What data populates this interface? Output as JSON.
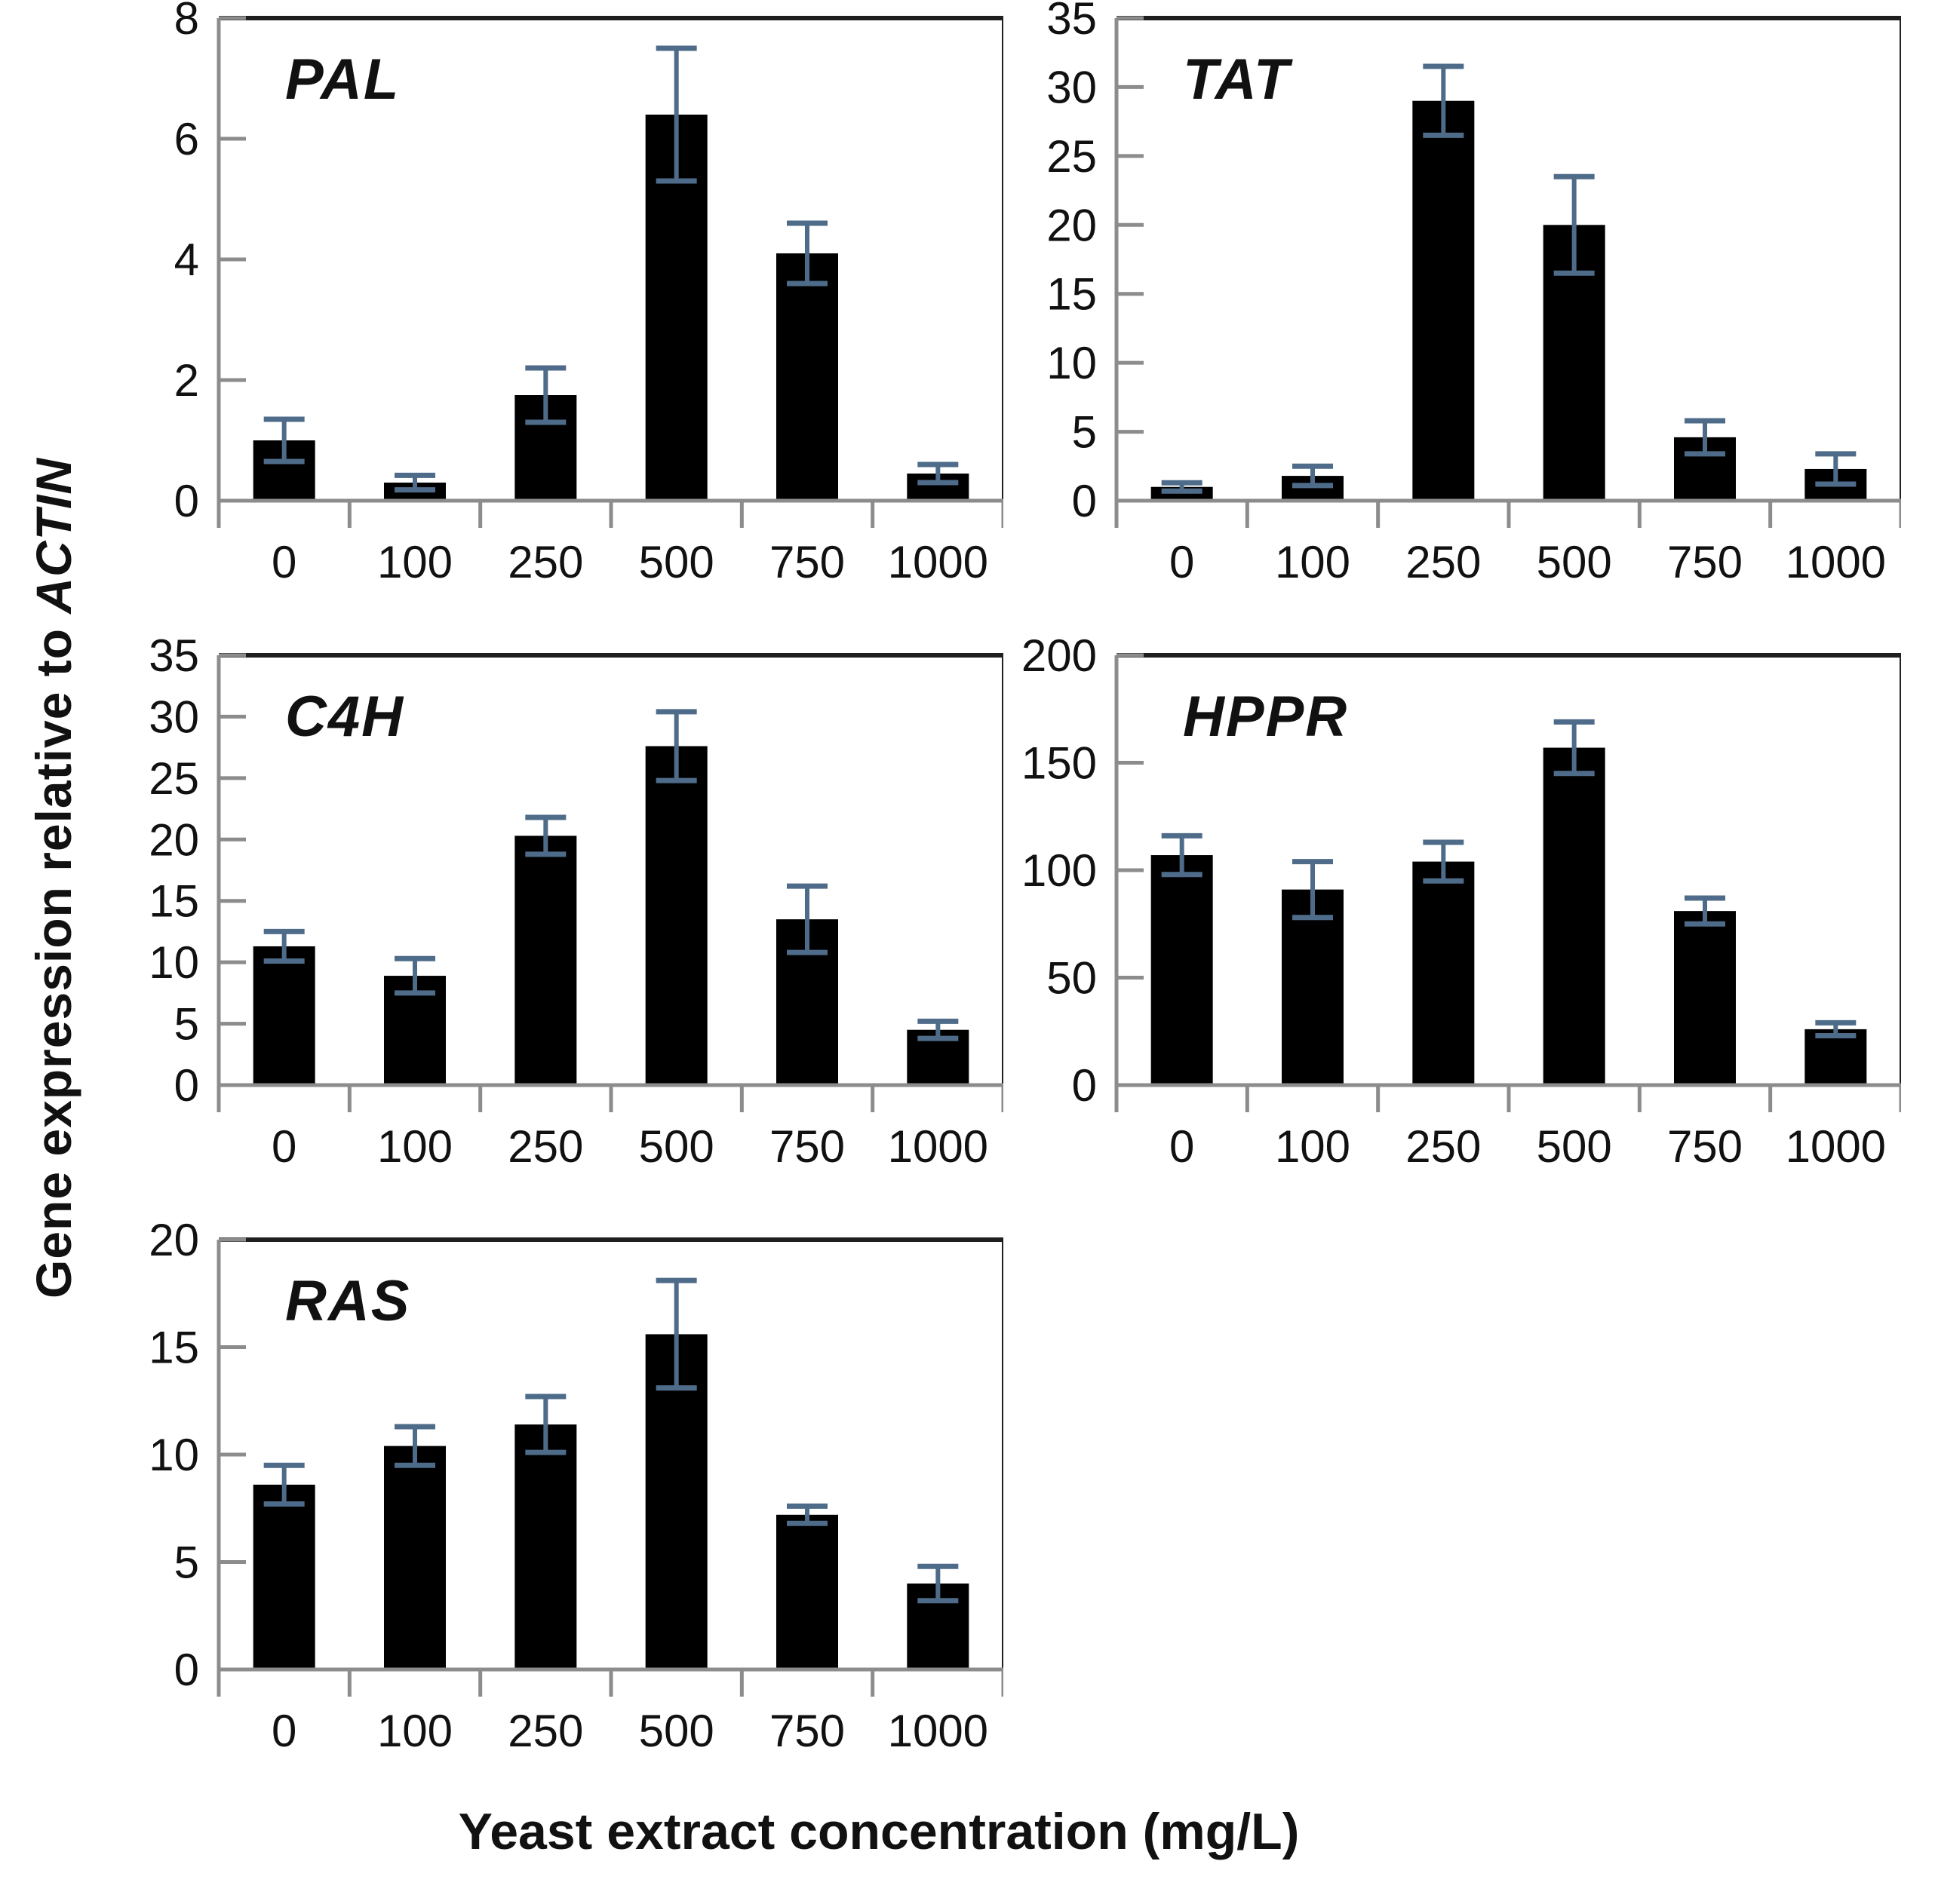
{
  "figure": {
    "ylabel_prefix": "Gene expression relative to ",
    "ylabel_gene": "ACTIN",
    "xlabel": "Yeast extract concentration (mg/L)",
    "colors": {
      "bar": "#000000",
      "error_bar": "#4e6c89",
      "axis": "#8c8c8c",
      "border": "#1f1f1f",
      "text": "#111111"
    }
  },
  "chart_data": [
    {
      "gene": "PAL",
      "type": "bar",
      "categories": [
        "0",
        "100",
        "250",
        "500",
        "750",
        "1000"
      ],
      "values": [
        1.0,
        0.3,
        1.75,
        6.4,
        4.1,
        0.45
      ],
      "errors": [
        0.35,
        0.12,
        0.45,
        1.1,
        0.5,
        0.15
      ],
      "ylim": [
        0,
        8
      ],
      "ytick_step": 2,
      "yticks": [
        0,
        2,
        4,
        6,
        8
      ]
    },
    {
      "gene": "TAT",
      "type": "bar",
      "categories": [
        "0",
        "100",
        "250",
        "500",
        "750",
        "1000"
      ],
      "values": [
        1.0,
        1.8,
        29.0,
        20.0,
        4.6,
        2.3
      ],
      "errors": [
        0.3,
        0.7,
        2.5,
        3.5,
        1.2,
        1.1
      ],
      "ylim": [
        0,
        35
      ],
      "ytick_step": 5,
      "yticks": [
        0,
        5,
        10,
        15,
        20,
        25,
        30,
        35
      ]
    },
    {
      "gene": "C4H",
      "type": "bar",
      "categories": [
        "0",
        "100",
        "250",
        "500",
        "750",
        "1000"
      ],
      "values": [
        11.3,
        8.9,
        20.3,
        27.6,
        13.5,
        4.5
      ],
      "errors": [
        1.2,
        1.4,
        1.5,
        2.8,
        2.7,
        0.7
      ],
      "ylim": [
        0,
        35
      ],
      "ytick_step": 5,
      "yticks": [
        0,
        5,
        10,
        15,
        20,
        25,
        30,
        35
      ]
    },
    {
      "gene": "HPPR",
      "type": "bar",
      "categories": [
        "0",
        "100",
        "250",
        "500",
        "750",
        "1000"
      ],
      "values": [
        107,
        91,
        104,
        157,
        81,
        26
      ],
      "errors": [
        9,
        13,
        9,
        12,
        6,
        3
      ],
      "ylim": [
        0,
        200
      ],
      "ytick_step": 50,
      "yticks": [
        0,
        50,
        100,
        150,
        200
      ]
    },
    {
      "gene": "RAS",
      "type": "bar",
      "categories": [
        "0",
        "100",
        "250",
        "500",
        "750",
        "1000"
      ],
      "values": [
        8.6,
        10.4,
        11.4,
        15.6,
        7.2,
        4.0
      ],
      "errors": [
        0.9,
        0.9,
        1.3,
        2.5,
        0.4,
        0.8
      ],
      "ylim": [
        0,
        20
      ],
      "ytick_step": 5,
      "yticks": [
        0,
        5,
        10,
        15,
        20
      ]
    }
  ]
}
